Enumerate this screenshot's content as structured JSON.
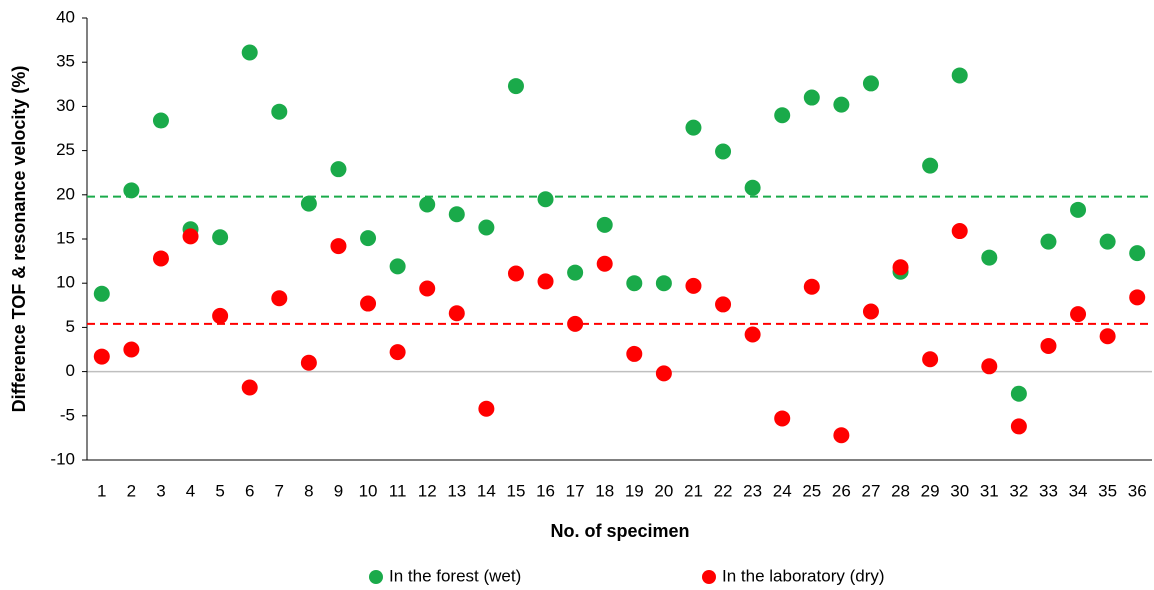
{
  "chart_data": {
    "type": "scatter",
    "x_label": "No. of specimen",
    "y_label": "Difference TOF & resonance velocity (%)",
    "x": [
      1,
      2,
      3,
      4,
      5,
      6,
      7,
      8,
      9,
      10,
      11,
      12,
      13,
      14,
      15,
      16,
      17,
      18,
      19,
      20,
      21,
      22,
      23,
      24,
      25,
      26,
      27,
      28,
      29,
      30,
      31,
      32,
      33,
      34,
      35,
      36
    ],
    "xlim": [
      0.5,
      36.5
    ],
    "xticks": [
      1,
      2,
      3,
      4,
      5,
      6,
      7,
      8,
      9,
      10,
      11,
      12,
      13,
      14,
      15,
      16,
      17,
      18,
      19,
      20,
      21,
      22,
      23,
      24,
      25,
      26,
      27,
      28,
      29,
      30,
      31,
      32,
      33,
      34,
      35,
      36
    ],
    "ylim": [
      -10,
      40
    ],
    "yticks": [
      -10,
      -5,
      0,
      5,
      10,
      15,
      20,
      25,
      30,
      35,
      40
    ],
    "series": [
      {
        "name": "In the forest (wet)",
        "color": "#1aaa4a",
        "values": [
          8.8,
          20.5,
          28.4,
          16.1,
          15.2,
          36.1,
          29.4,
          19.0,
          22.9,
          15.1,
          11.9,
          18.9,
          17.8,
          16.3,
          32.3,
          19.5,
          11.2,
          16.6,
          10.0,
          10.0,
          27.6,
          24.9,
          20.8,
          29.0,
          31.0,
          30.2,
          32.6,
          11.3,
          23.3,
          33.5,
          12.9,
          -2.5,
          14.7,
          18.3,
          14.7,
          13.4
        ],
        "mean": 19.8
      },
      {
        "name": "In the laboratory (dry)",
        "color": "#ff0000",
        "values": [
          1.7,
          2.5,
          12.8,
          15.3,
          6.3,
          -1.8,
          8.3,
          1.0,
          14.2,
          7.7,
          2.2,
          9.4,
          6.6,
          -4.2,
          11.1,
          10.2,
          5.4,
          12.2,
          2.0,
          -0.2,
          9.7,
          7.6,
          4.2,
          -5.3,
          9.6,
          -7.2,
          6.8,
          11.8,
          1.4,
          15.9,
          0.6,
          -6.2,
          2.9,
          6.5,
          4.0,
          8.4
        ],
        "mean": 5.4
      }
    ]
  }
}
